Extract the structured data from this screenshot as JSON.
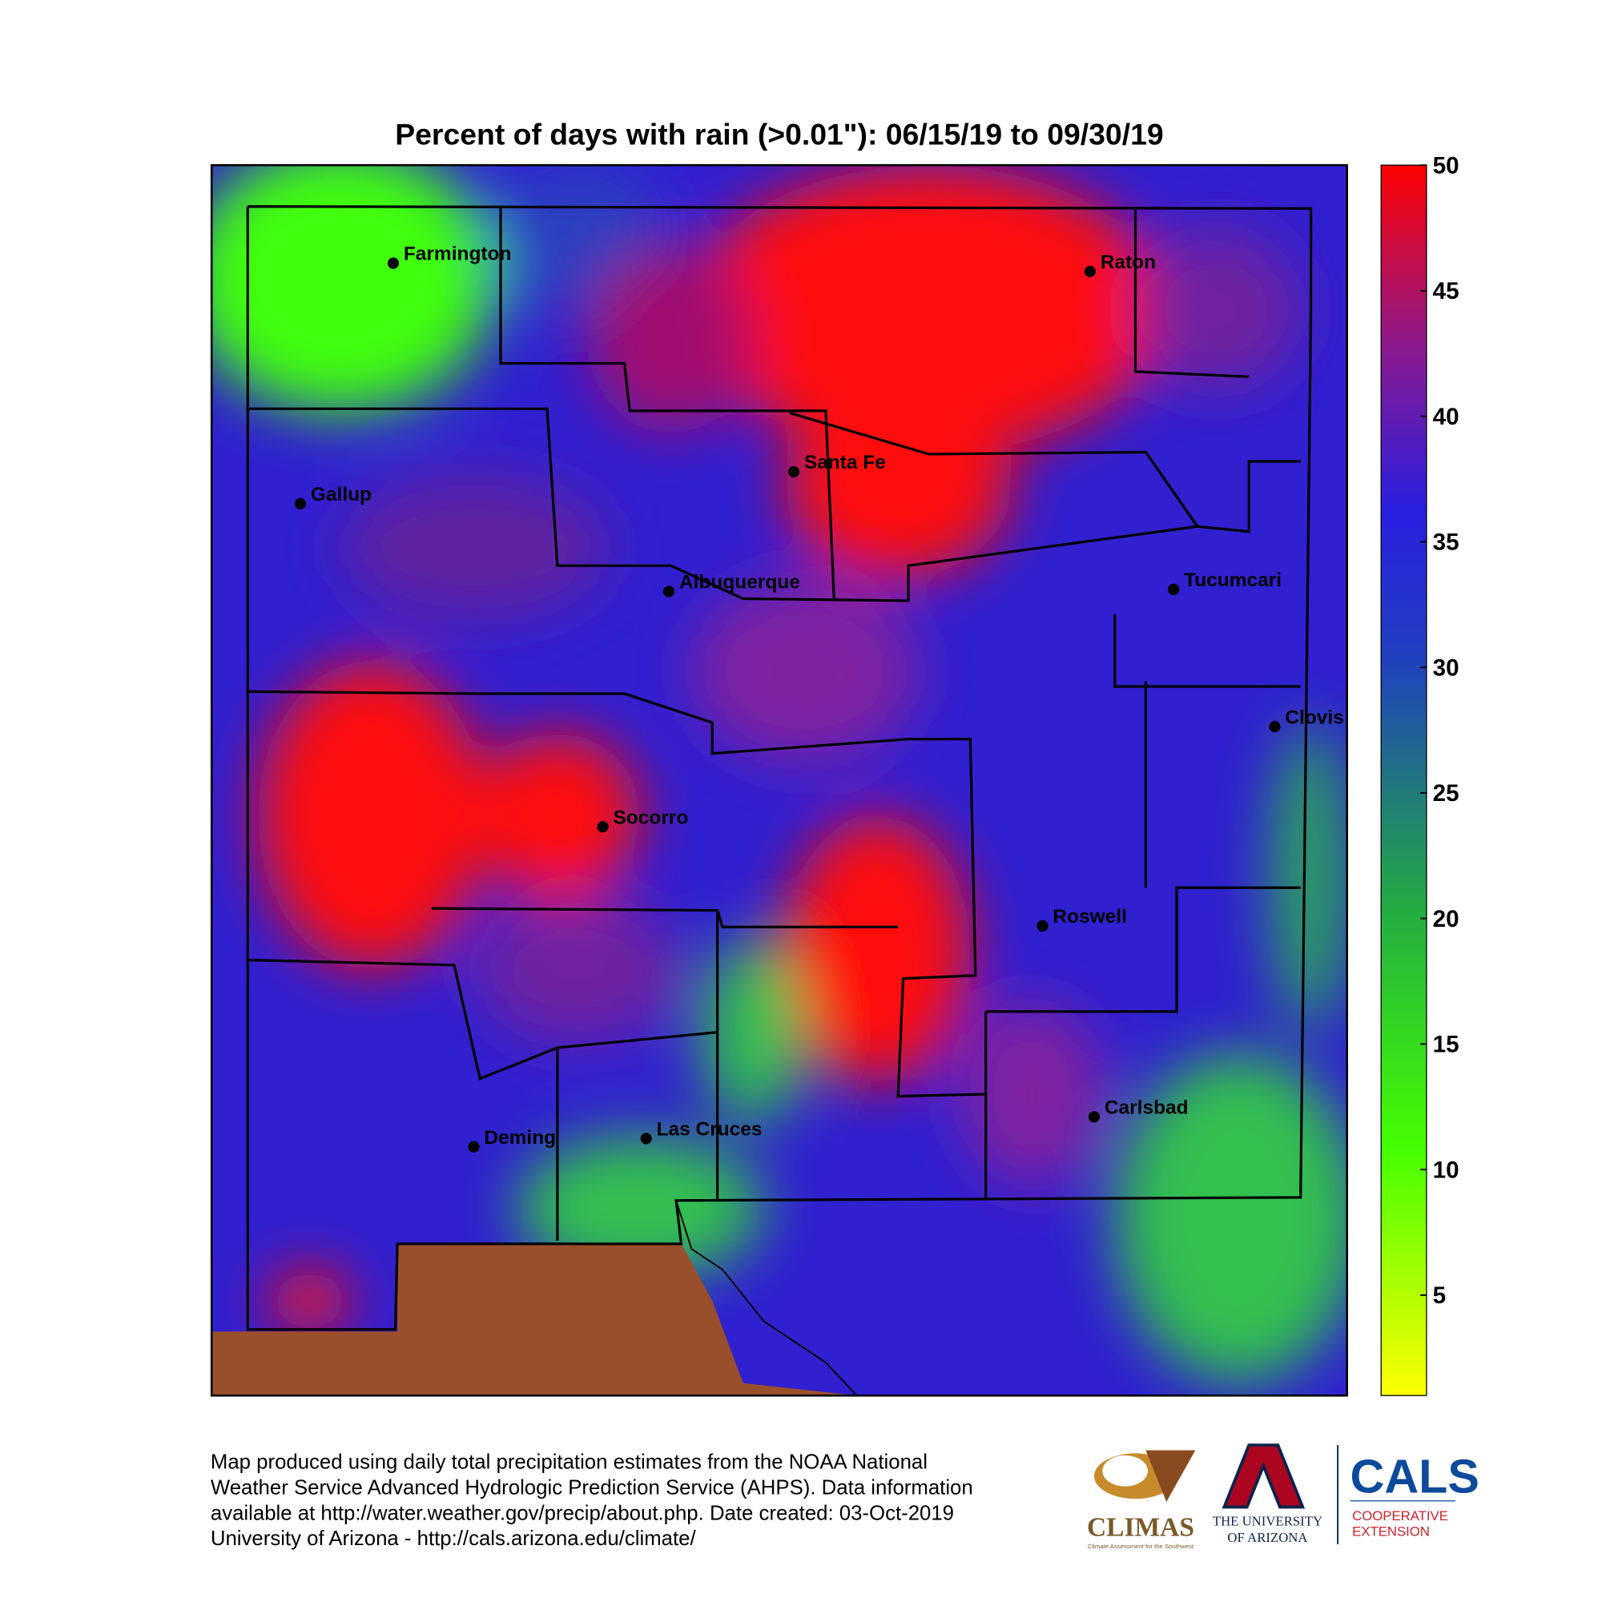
{
  "title": "Percent of days with rain (>0.01\"): 06/15/19 to 09/30/19",
  "cities": [
    "Farmington",
    "Raton",
    "Santa Fe",
    "Gallup",
    "Albuquerque",
    "Tucumcari",
    "Clovis",
    "Socorro",
    "Roswell",
    "Carlsbad",
    "Deming",
    "Las Cruces"
  ],
  "colorbar": {
    "lim": [
      1,
      50
    ],
    "ticks": [
      5,
      10,
      15,
      20,
      25,
      30,
      35,
      40,
      45,
      50
    ]
  },
  "footer": [
    "Map produced using daily total precipitation estimates from the NOAA National",
    "Weather Service Advanced Hydrologic Prediction Service (AHPS). Data information",
    "available at http://water.weather.gov/precip/about.php. Date created: 03-Oct-2019",
    "University of Arizona - http://cals.arizona.edu/climate/"
  ],
  "logos": {
    "climas": "CLIMAS",
    "climas_sub": "Climate Assessment for the Southwest",
    "ua_line1": "THE UNIVERSITY",
    "ua_line2": "OF ARIZONA",
    "cals": "CALS",
    "cals_line1": "COOPERATIVE",
    "cals_line2": "EXTENSION"
  }
}
